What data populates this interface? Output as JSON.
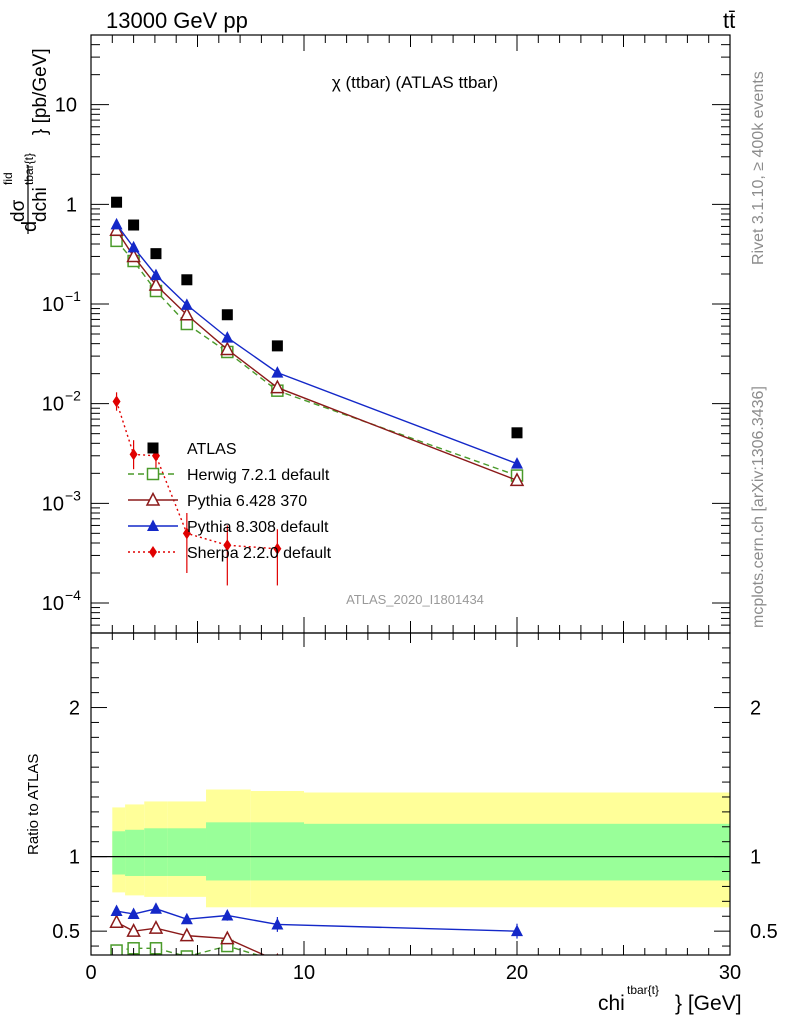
{
  "header": {
    "energy": "13000 GeV pp",
    "process": "tt̄"
  },
  "side_text": {
    "rivet": "Rivet 3.1.10, ≥ 400k events",
    "mcplots": "mcplots.cern.ch [arXiv:1306.3436]"
  },
  "chart_data": [
    {
      "type": "scatter",
      "title": "χ (ttbar) (ATLAS ttbar)",
      "analysis_label": "ATLAS_2020_I1801434",
      "ylabel": {
        "d": "d",
        "sigma": "dσ",
        "fid": "fid",
        "den": "dchi",
        "sup": "tbar{t}",
        "unit": "} [pb/GeV]"
      },
      "xlim": [
        0,
        30
      ],
      "ylim": [
        5e-05,
        50
      ],
      "yscale": "log",
      "xticks": [
        0,
        10,
        20,
        30
      ],
      "yticks": [
        {
          "value": 0.0001,
          "base": "10",
          "exp": "−4"
        },
        {
          "value": 0.001,
          "base": "10",
          "exp": "−3"
        },
        {
          "value": 0.01,
          "base": "10",
          "exp": "−2"
        },
        {
          "value": 0.1,
          "base": "10",
          "exp": "−1"
        },
        {
          "value": 1,
          "base": "1",
          "exp": ""
        },
        {
          "value": 10,
          "base": "10",
          "exp": ""
        }
      ],
      "legend_position": "bottom-left",
      "series": [
        {
          "name": "ATLAS",
          "marker": "square",
          "color": "#000000",
          "dash": "",
          "x": [
            1.2,
            2.0,
            3.05,
            4.5,
            6.4,
            8.75,
            20.0
          ],
          "y": [
            1.05,
            0.62,
            0.32,
            0.175,
            0.078,
            0.038,
            0.0051
          ]
        },
        {
          "name": "Herwig 7.2.1 default",
          "marker": "open-square",
          "color": "#4a9a2a",
          "dash": "6,4",
          "x": [
            1.2,
            2.0,
            3.05,
            4.5,
            6.4,
            8.75,
            20.0
          ],
          "y": [
            0.43,
            0.27,
            0.135,
            0.063,
            0.033,
            0.0135,
            0.0019
          ]
        },
        {
          "name": "Pythia 6.428 370",
          "marker": "open-triangle",
          "color": "#8b1a1a",
          "dash": "",
          "x": [
            1.2,
            2.0,
            3.05,
            4.5,
            6.4,
            8.75,
            20.0
          ],
          "y": [
            0.55,
            0.3,
            0.155,
            0.078,
            0.035,
            0.0145,
            0.0017
          ]
        },
        {
          "name": "Pythia 8.308 default",
          "marker": "triangle",
          "color": "#1428c8",
          "dash": "",
          "x": [
            1.2,
            2.0,
            3.05,
            4.5,
            6.4,
            8.75,
            20.0
          ],
          "y": [
            0.63,
            0.37,
            0.195,
            0.098,
            0.046,
            0.0205,
            0.0025
          ]
        },
        {
          "name": "Sherpa 2.2.0 default",
          "marker": "diamond",
          "color": "#e00000",
          "dash": "2,3",
          "x": [
            1.2,
            2.0,
            3.05,
            4.5,
            6.4,
            8.75
          ],
          "y": [
            0.0105,
            0.0031,
            0.003,
            0.0005,
            0.00038,
            0.00035
          ],
          "yerr_lo": [
            0.0085,
            0.0022,
            0.0022,
            0.0002,
            0.00015,
            0.00015
          ],
          "yerr_hi": [
            0.013,
            0.0043,
            0.0039,
            0.0008,
            0.0006,
            0.00055
          ]
        }
      ]
    },
    {
      "type": "scatter",
      "ylabel": "Ratio to ATLAS",
      "xlabel": {
        "main": "chi",
        "sup": "tbar{t}",
        "unit": "} [GeV]"
      },
      "xlim": [
        0,
        30
      ],
      "ylim": [
        0.34,
        2.5
      ],
      "xticks": [
        0,
        10,
        20,
        30
      ],
      "yticks": [
        {
          "value": 0.5,
          "label": "0.5"
        },
        {
          "value": 1,
          "label": "1"
        },
        {
          "value": 2,
          "label": "2"
        }
      ],
      "bands": {
        "edges": [
          1,
          1.6,
          2.5,
          3.6,
          5.4,
          7.5,
          10,
          30
        ],
        "yellow_lo": [
          0.76,
          0.74,
          0.73,
          0.73,
          0.66,
          0.66,
          0.66
        ],
        "yellow_hi": [
          1.33,
          1.35,
          1.37,
          1.37,
          1.45,
          1.44,
          1.43
        ],
        "green_lo": [
          0.88,
          0.87,
          0.87,
          0.87,
          0.84,
          0.84,
          0.84
        ],
        "green_hi": [
          1.17,
          1.18,
          1.19,
          1.19,
          1.23,
          1.23,
          1.22
        ]
      },
      "series": [
        {
          "name": "Herwig 7.2.1 default",
          "marker": "open-square",
          "color": "#4a9a2a",
          "dash": "6,4",
          "x": [
            1.2,
            2.0,
            3.05,
            4.5,
            6.4,
            8.75
          ],
          "y": [
            0.37,
            0.385,
            0.385,
            0.33,
            0.4,
            0.3
          ]
        },
        {
          "name": "Pythia 6.428 370",
          "marker": "open-triangle",
          "color": "#8b1a1a",
          "dash": "",
          "x": [
            1.2,
            2.0,
            3.05,
            4.5,
            6.4,
            8.75
          ],
          "y": [
            0.56,
            0.5,
            0.52,
            0.47,
            0.45,
            0.3
          ]
        },
        {
          "name": "Pythia 8.308 default",
          "marker": "triangle",
          "color": "#1428c8",
          "dash": "",
          "x": [
            1.2,
            2.0,
            3.05,
            4.5,
            6.4,
            8.75,
            20.0
          ],
          "y": [
            0.635,
            0.615,
            0.65,
            0.58,
            0.605,
            0.545,
            0.5
          ],
          "yerr": [
            0.02,
            0.02,
            0.02,
            0.03,
            0.035,
            0.05,
            0.05
          ]
        }
      ]
    }
  ]
}
